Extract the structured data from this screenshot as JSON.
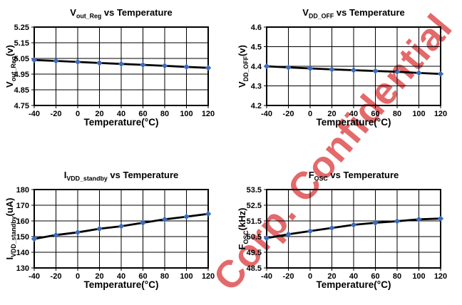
{
  "watermark": {
    "text": "Corp. Confidential",
    "color": "#e4696a"
  },
  "chart_data": [
    {
      "id": "vout_reg",
      "type": "line",
      "title": "Vout_Reg vs Temperature",
      "title_segments": [
        {
          "t": "V",
          "sub": false
        },
        {
          "t": "out_Reg",
          "sub": true
        },
        {
          "t": " vs Temperature",
          "sub": false
        }
      ],
      "xlabel": "Temperature(°C)",
      "ylabel": "Vout_Reg(v)",
      "ylabel_segments": [
        {
          "t": "V",
          "sub": false
        },
        {
          "t": "out_Reg",
          "sub": true
        },
        {
          "t": "(v)",
          "sub": false
        }
      ],
      "x": [
        -40,
        -20,
        0,
        20,
        40,
        60,
        80,
        100,
        120
      ],
      "values": [
        5.04,
        5.034,
        5.028,
        5.021,
        5.015,
        5.009,
        5.003,
        4.996,
        4.99
      ],
      "xticks": [
        -40,
        -20,
        0,
        20,
        40,
        60,
        80,
        100,
        120
      ],
      "ylim": [
        4.75,
        5.25
      ],
      "yticks": [
        4.75,
        4.85,
        4.95,
        5.05,
        5.15,
        5.25
      ],
      "ytick_labels": [
        "4.75",
        "4.85",
        "4.95",
        "5.05",
        "5.15",
        "5.25"
      ],
      "grid": true,
      "legend": false,
      "line_color": "#000000",
      "marker": "diamond",
      "marker_color": "#3c6cbc"
    },
    {
      "id": "vdd_off",
      "type": "line",
      "title": "VDD_OFF vs Temperature",
      "title_segments": [
        {
          "t": "V",
          "sub": false
        },
        {
          "t": "DD_OFF",
          "sub": true
        },
        {
          "t": " vs Temperature",
          "sub": false
        }
      ],
      "xlabel": "Temperature(°C)",
      "ylabel": "VDD_OFF(v)",
      "ylabel_segments": [
        {
          "t": "V",
          "sub": false
        },
        {
          "t": "DD_OFF",
          "sub": true
        },
        {
          "t": "(v)",
          "sub": false
        }
      ],
      "x": [
        -40,
        -20,
        0,
        20,
        40,
        60,
        80,
        100,
        120
      ],
      "values": [
        4.4,
        4.394,
        4.389,
        4.384,
        4.38,
        4.376,
        4.372,
        4.366,
        4.361
      ],
      "xticks": [
        -40,
        -20,
        0,
        20,
        40,
        60,
        80,
        100,
        120
      ],
      "ylim": [
        4.2,
        4.6
      ],
      "yticks": [
        4.2,
        4.3,
        4.4,
        4.5,
        4.6
      ],
      "ytick_labels": [
        "4.2",
        "4.3",
        "4.4",
        "4.5",
        "4.6"
      ],
      "grid": true,
      "legend": false,
      "line_color": "#000000",
      "marker": "diamond",
      "marker_color": "#3c6cbc"
    },
    {
      "id": "ivdd_standby",
      "type": "line",
      "title": "IVDD_standby vs Temperature",
      "title_segments": [
        {
          "t": "I",
          "sub": false
        },
        {
          "t": "VDD_standby",
          "sub": true
        },
        {
          "t": " vs Temperature",
          "sub": false
        }
      ],
      "xlabel": "Temperature(°C)",
      "ylabel": "IVDD_standby(uA)",
      "ylabel_segments": [
        {
          "t": "I",
          "sub": false
        },
        {
          "t": "VDD_standby",
          "sub": true
        },
        {
          "t": "(uA)",
          "sub": false
        }
      ],
      "x": [
        -40,
        -20,
        0,
        20,
        40,
        60,
        80,
        100,
        120
      ],
      "values": [
        148.5,
        151.0,
        152.7,
        155.0,
        156.6,
        158.8,
        161.0,
        162.7,
        164.5
      ],
      "xticks": [
        -40,
        -20,
        0,
        20,
        40,
        60,
        80,
        100,
        120
      ],
      "ylim": [
        130,
        180
      ],
      "yticks": [
        130,
        140,
        150,
        160,
        170,
        180
      ],
      "ytick_labels": [
        "130",
        "140",
        "150",
        "160",
        "170",
        "180"
      ],
      "grid": true,
      "legend": false,
      "line_color": "#000000",
      "marker": "diamond",
      "marker_color": "#3c6cbc"
    },
    {
      "id": "fosc",
      "type": "line",
      "title": "FOSC vs Temperature",
      "title_segments": [
        {
          "t": "F",
          "sub": false
        },
        {
          "t": "OSC",
          "sub": true
        },
        {
          "t": " vs Temperature",
          "sub": false
        }
      ],
      "xlabel": "Temperature(°C)",
      "ylabel": "FOSC(kHz)",
      "ylabel_segments": [
        {
          "t": "F",
          "sub": false
        },
        {
          "t": "OSC",
          "sub": true
        },
        {
          "t": "(kHz)",
          "sub": false
        }
      ],
      "x": [
        -40,
        -20,
        0,
        20,
        40,
        60,
        80,
        100,
        120
      ],
      "values": [
        50.4,
        50.65,
        50.85,
        51.05,
        51.25,
        51.38,
        51.48,
        51.6,
        51.65
      ],
      "xticks": [
        -40,
        -20,
        0,
        20,
        40,
        60,
        80,
        100,
        120
      ],
      "ylim": [
        48.5,
        53.5
      ],
      "yticks": [
        48.5,
        49.5,
        50.5,
        51.5,
        52.5,
        53.5
      ],
      "ytick_labels": [
        "48.5",
        "49.5",
        "50.5",
        "51.5",
        "52.5",
        "53.5"
      ],
      "grid": true,
      "legend": false,
      "line_color": "#000000",
      "marker": "diamond",
      "marker_color": "#3c6cbc"
    }
  ]
}
